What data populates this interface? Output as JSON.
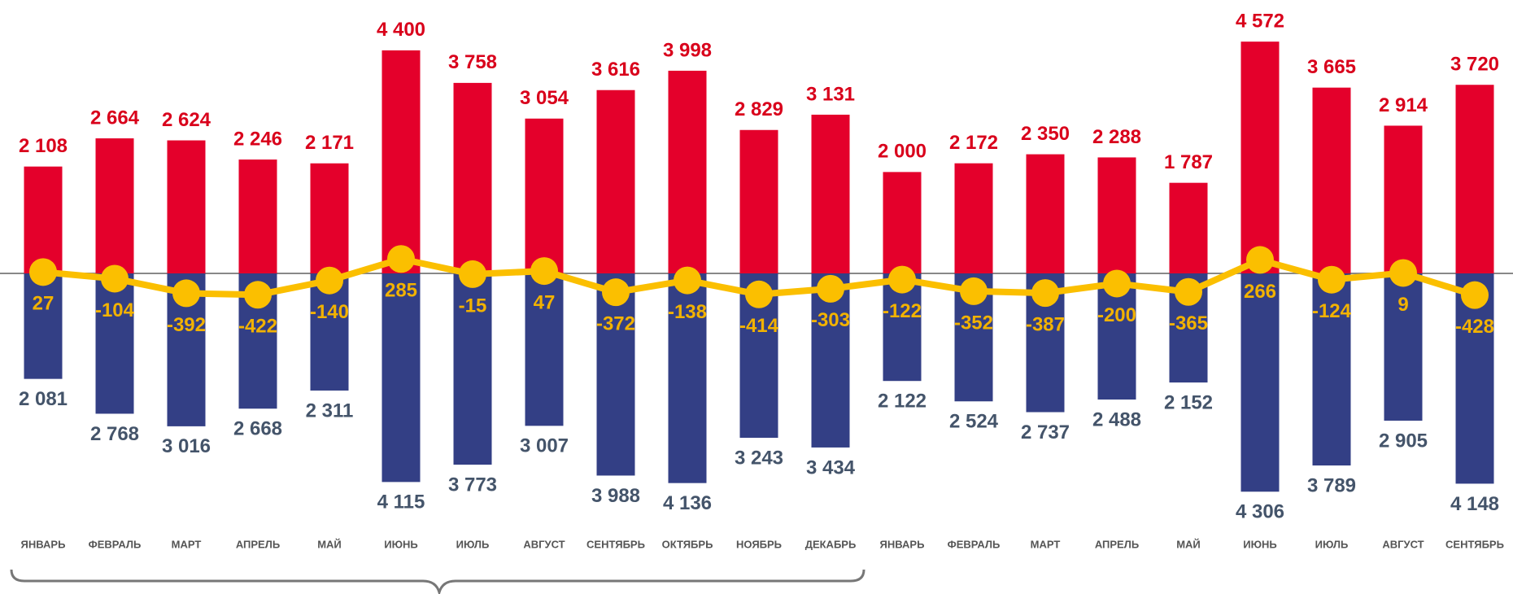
{
  "chart_data": {
    "type": "bar",
    "categories": [
      "ЯНВАРЬ",
      "ФЕВРАЛЬ",
      "МАРТ",
      "АПРЕЛЬ",
      "МАЙ",
      "ИЮНЬ",
      "ИЮЛЬ",
      "АВГУСТ",
      "СЕНТЯБРЬ",
      "ОКТЯБРЬ",
      "НОЯБРЬ",
      "ДЕКАБРЬ",
      "ЯНВАРЬ",
      "ФЕВРАЛЬ",
      "МАРТ",
      "АПРЕЛЬ",
      "МАЙ",
      "ИЮНЬ",
      "ИЮЛЬ",
      "АВГУСТ",
      "СЕНТЯБРЬ"
    ],
    "series": [
      {
        "type": "bar",
        "direction": "up",
        "color": "#e4002b",
        "label_color": "#d9001b",
        "values": [
          2108,
          2664,
          2624,
          2246,
          2171,
          4400,
          3758,
          3054,
          3616,
          3998,
          2829,
          3131,
          2000,
          2172,
          2350,
          2288,
          1787,
          4572,
          3665,
          2914,
          3720
        ],
        "value_labels": [
          "2 108",
          "2 664",
          "2 624",
          "2 246",
          "2 171",
          "4 400",
          "3 758",
          "3 054",
          "3 616",
          "3 998",
          "2 829",
          "3 131",
          "2 000",
          "2 172",
          "2 350",
          "2 288",
          "1 787",
          "4 572",
          "3 665",
          "2 914",
          "3 720"
        ]
      },
      {
        "type": "bar",
        "direction": "down",
        "color": "#333f85",
        "label_color": "#44546a",
        "values": [
          2081,
          2768,
          3016,
          2668,
          2311,
          4115,
          3773,
          3007,
          3988,
          4136,
          3243,
          3434,
          2122,
          2524,
          2737,
          2488,
          2152,
          4306,
          3789,
          2905,
          4148
        ],
        "value_labels": [
          "2 081",
          "2 768",
          "3 016",
          "2 668",
          "2 311",
          "4 115",
          "3 773",
          "3 007",
          "3 988",
          "4 136",
          "3 243",
          "3 434",
          "2 122",
          "2 524",
          "2 737",
          "2 488",
          "2 152",
          "4 306",
          "3 789",
          "2 905",
          "4 148"
        ]
      },
      {
        "type": "line",
        "color": "#fbbf00",
        "label_color": "#f2b200",
        "values": [
          27,
          -104,
          -392,
          -422,
          -140,
          285,
          -15,
          47,
          -372,
          -138,
          -414,
          -303,
          -122,
          -352,
          -387,
          -200,
          -365,
          266,
          -124,
          9,
          -428
        ]
      }
    ]
  }
}
